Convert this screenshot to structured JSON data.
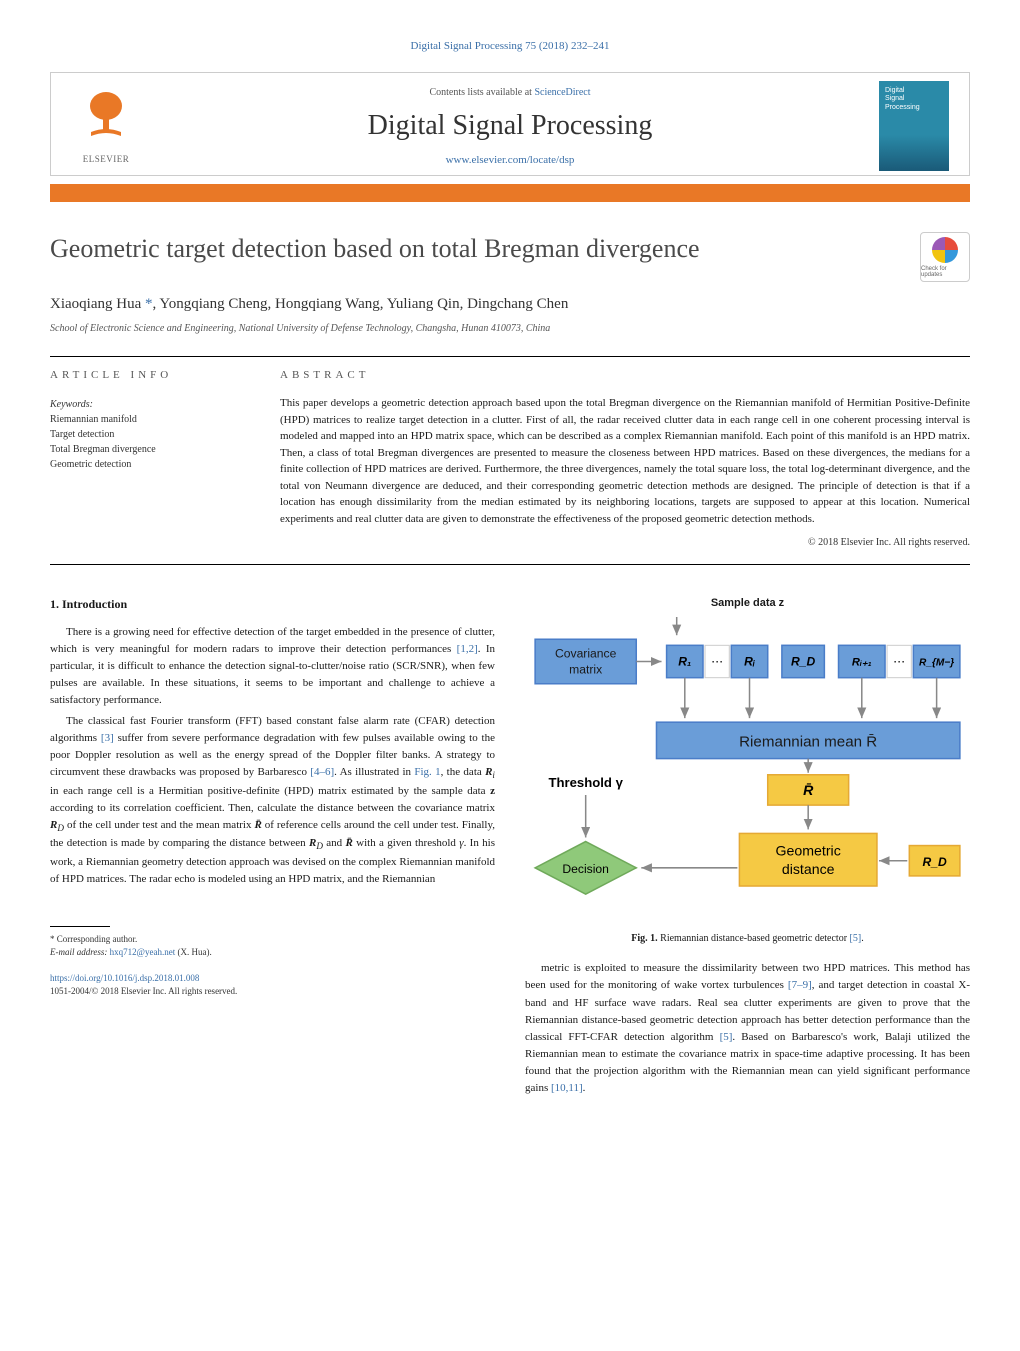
{
  "header": {
    "citation": "Digital Signal Processing 75 (2018) 232–241",
    "contents_prefix": "Contents lists available at ",
    "contents_link": "ScienceDirect",
    "journal_name": "Digital Signal Processing",
    "journal_url": "www.elsevier.com/locate/dsp",
    "publisher": "ELSEVIER",
    "cover_text": "Digital\nSignal\nProcessing"
  },
  "colors": {
    "accent_orange": "#e97826",
    "link_blue": "#3a6fa8",
    "text_dark": "#1a1a1a",
    "text_gray": "#555555",
    "border_gray": "#cccccc",
    "cover_teal": "#2a8aa8",
    "box_blue": "#6a9dd8",
    "box_blue_dark": "#4a7dc8",
    "box_yellow": "#f5c944",
    "box_yellow_dark": "#e5a934",
    "box_green": "#8fc97a",
    "box_green_dark": "#6fa95a",
    "arrow_color": "#888888"
  },
  "title": "Geometric target detection based on total Bregman divergence",
  "crossmark_label": "Check for updates",
  "authors_html": "Xiaoqiang Hua <span class='corr-mark'>*</span>, Yongqiang Cheng, Hongqiang Wang, Yuliang Qin, Dingchang Chen",
  "affiliation": "School of Electronic Science and Engineering, National University of Defense Technology, Changsha, Hunan 410073, China",
  "article_info": {
    "heading": "article info",
    "keywords_label": "Keywords:",
    "keywords": [
      "Riemannian manifold",
      "Target detection",
      "Total Bregman divergence",
      "Geometric detection"
    ]
  },
  "abstract": {
    "heading": "abstract",
    "text": "This paper develops a geometric detection approach based upon the total Bregman divergence on the Riemannian manifold of Hermitian Positive-Definite (HPD) matrices to realize target detection in a clutter. First of all, the radar received clutter data in each range cell in one coherent processing interval is modeled and mapped into an HPD matrix space, which can be described as a complex Riemannian manifold. Each point of this manifold is an HPD matrix. Then, a class of total Bregman divergences are presented to measure the closeness between HPD matrices. Based on these divergences, the medians for a finite collection of HPD matrices are derived. Furthermore, the three divergences, namely the total square loss, the total log-determinant divergence, and the total von Neumann divergence are deduced, and their corresponding geometric detection methods are designed. The principle of detection is that if a location has enough dissimilarity from the median estimated by its neighboring locations, targets are supposed to appear at this location. Numerical experiments and real clutter data are given to demonstrate the effectiveness of the proposed geometric detection methods.",
    "copyright": "© 2018 Elsevier Inc. All rights reserved."
  },
  "body": {
    "section1_heading": "1. Introduction",
    "left_paras": [
      "There is a growing need for effective detection of the target embedded in the presence of clutter, which is very meaningful for modern radars to improve their detection performances <span class='ref-link'>[1,2]</span>. In particular, it is difficult to enhance the detection signal-to-clutter/noise ratio (SCR/SNR), when few pulses are available. In these situations, it seems to be important and challenge to achieve a satisfactory performance.",
      "The classical fast Fourier transform (FFT) based constant false alarm rate (CFAR) detection algorithms <span class='ref-link'>[3]</span> suffer from severe performance degradation with few pulses available owing to the poor Doppler resolution as well as the energy spread of the Doppler filter banks. A strategy to circumvent these drawbacks was proposed by Barbaresco <span class='ref-link'>[4–6]</span>. As illustrated in <span class='ref-link'>Fig. 1</span>, the data <span class='math'><b>R</b><sub>i</sub></span> in each range cell is a Hermitian positive-definite (HPD) matrix estimated by the sample data <b>z</b> according to its correlation coefficient. Then, calculate the distance between the covariance matrix <span class='math'><b>R</b><sub>D</sub></span> of the cell under test and the mean matrix <span class='math'><b>R̄</b></span> of reference cells around the cell under test. Finally, the detection is made by comparing the distance between <span class='math'><b>R</b><sub>D</sub></span> and <span class='math'><b>R̄</b></span> with a given threshold <span class='math'>γ</span>. In his work, a Riemannian geometry detection approach was devised on the complex Riemannian manifold of HPD matrices. The radar echo is modeled using an HPD matrix, and the Riemannian"
    ],
    "right_para": "metric is exploited to measure the dissimilarity between two HPD matrices. This method has been used for the monitoring of wake vortex turbulences <span class='ref-link'>[7–9]</span>, and target detection in coastal X-band and HF surface wave radars. Real sea clutter experiments are given to prove that the Riemannian distance-based geometric detection approach has better detection performance than the classical FFT-CFAR detection algorithm <span class='ref-link'>[5]</span>. Based on Barbaresco's work, Balaji utilized the Riemannian mean to estimate the covariance matrix in space-time adaptive processing. It has been found that the projection algorithm with the Riemannian mean can yield significant performance gains <span class='ref-link'>[10,11]</span>."
  },
  "figure1": {
    "caption": "Fig. 1. Riemannian distance-based geometric detector [5].",
    "sample_label": "Sample data z",
    "cov_label": "Covariance\nmatrix",
    "cells": [
      "R₁",
      "⋯",
      "Rᵢ",
      "R_D",
      "Rᵢ₊₁",
      "R_{M−}"
    ],
    "mean_label": "Riemannian mean R̄",
    "threshold_label": "Threshold γ",
    "rbar_label": "R̄",
    "decision_label": "Decision",
    "distance_label": "Geometric\ndistance",
    "rd_label": "R_D",
    "box_fontsize": 12,
    "label_fontsize": 13,
    "arrow_color": "#888888"
  },
  "footer": {
    "corr_label": "* Corresponding author.",
    "email_label": "E-mail address:",
    "email": "hxq712@yeah.net",
    "email_name": "(X. Hua).",
    "doi": "https://doi.org/10.1016/j.dsp.2018.01.008",
    "issn_line": "1051-2004/© 2018 Elsevier Inc. All rights reserved."
  }
}
